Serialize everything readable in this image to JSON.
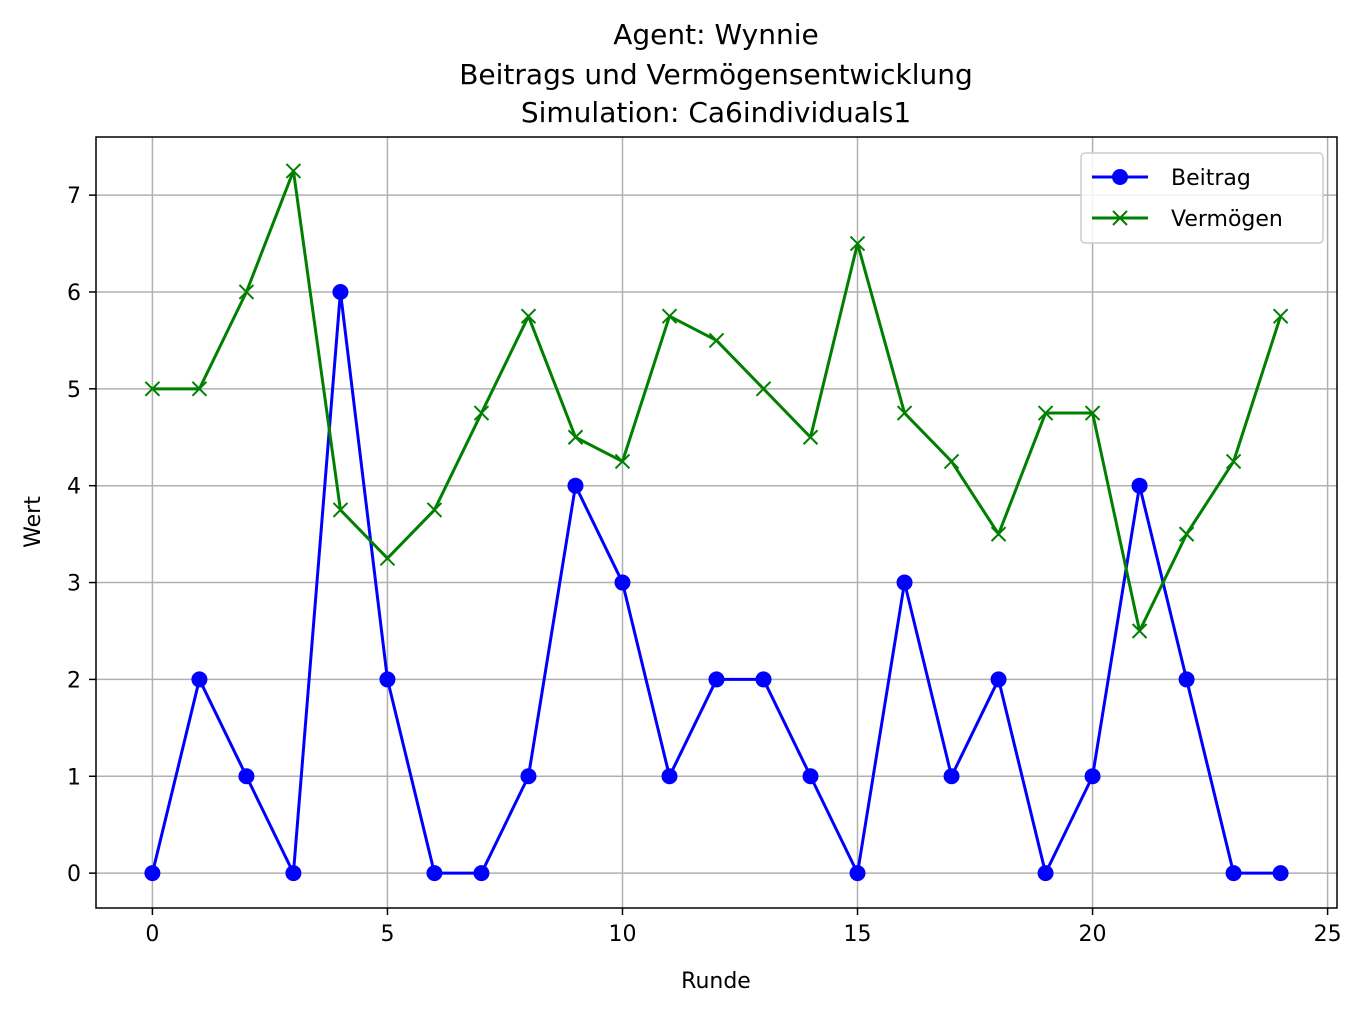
{
  "chart_data": {
    "type": "line",
    "title_lines": [
      "Agent: Wynnie",
      "Beitrags und Vermögensentwicklung",
      "Simulation: Ca6individuals1"
    ],
    "xlabel": "Runde",
    "ylabel": "Wert",
    "x": [
      0,
      1,
      2,
      3,
      4,
      5,
      6,
      7,
      8,
      9,
      10,
      11,
      12,
      13,
      14,
      15,
      16,
      17,
      18,
      19,
      20,
      21,
      22,
      23,
      24
    ],
    "xlim": [
      -1.2,
      25.2
    ],
    "ylim": [
      -0.36,
      7.6
    ],
    "xticks": [
      0,
      5,
      10,
      15,
      20,
      25
    ],
    "yticks": [
      0,
      1,
      2,
      3,
      4,
      5,
      6,
      7
    ],
    "grid": true,
    "legend_position": "upper right",
    "series": [
      {
        "name": "Beitrag",
        "color": "#0000ff",
        "marker": "circle",
        "values": [
          0,
          2,
          1,
          0,
          6,
          2,
          0,
          0,
          1,
          4,
          3,
          1,
          2,
          2,
          1,
          0,
          3,
          1,
          2,
          0,
          1,
          4,
          2,
          0,
          0
        ]
      },
      {
        "name": "Vermögen",
        "color": "#008000",
        "marker": "x",
        "values": [
          5,
          5,
          6,
          7.25,
          3.75,
          3.25,
          3.75,
          4.75,
          5.75,
          4.5,
          4.25,
          5.75,
          5.5,
          5,
          4.5,
          6.5,
          4.75,
          4.25,
          3.5,
          4.75,
          4.75,
          2.5,
          3.5,
          4.25,
          5.75
        ]
      }
    ]
  }
}
